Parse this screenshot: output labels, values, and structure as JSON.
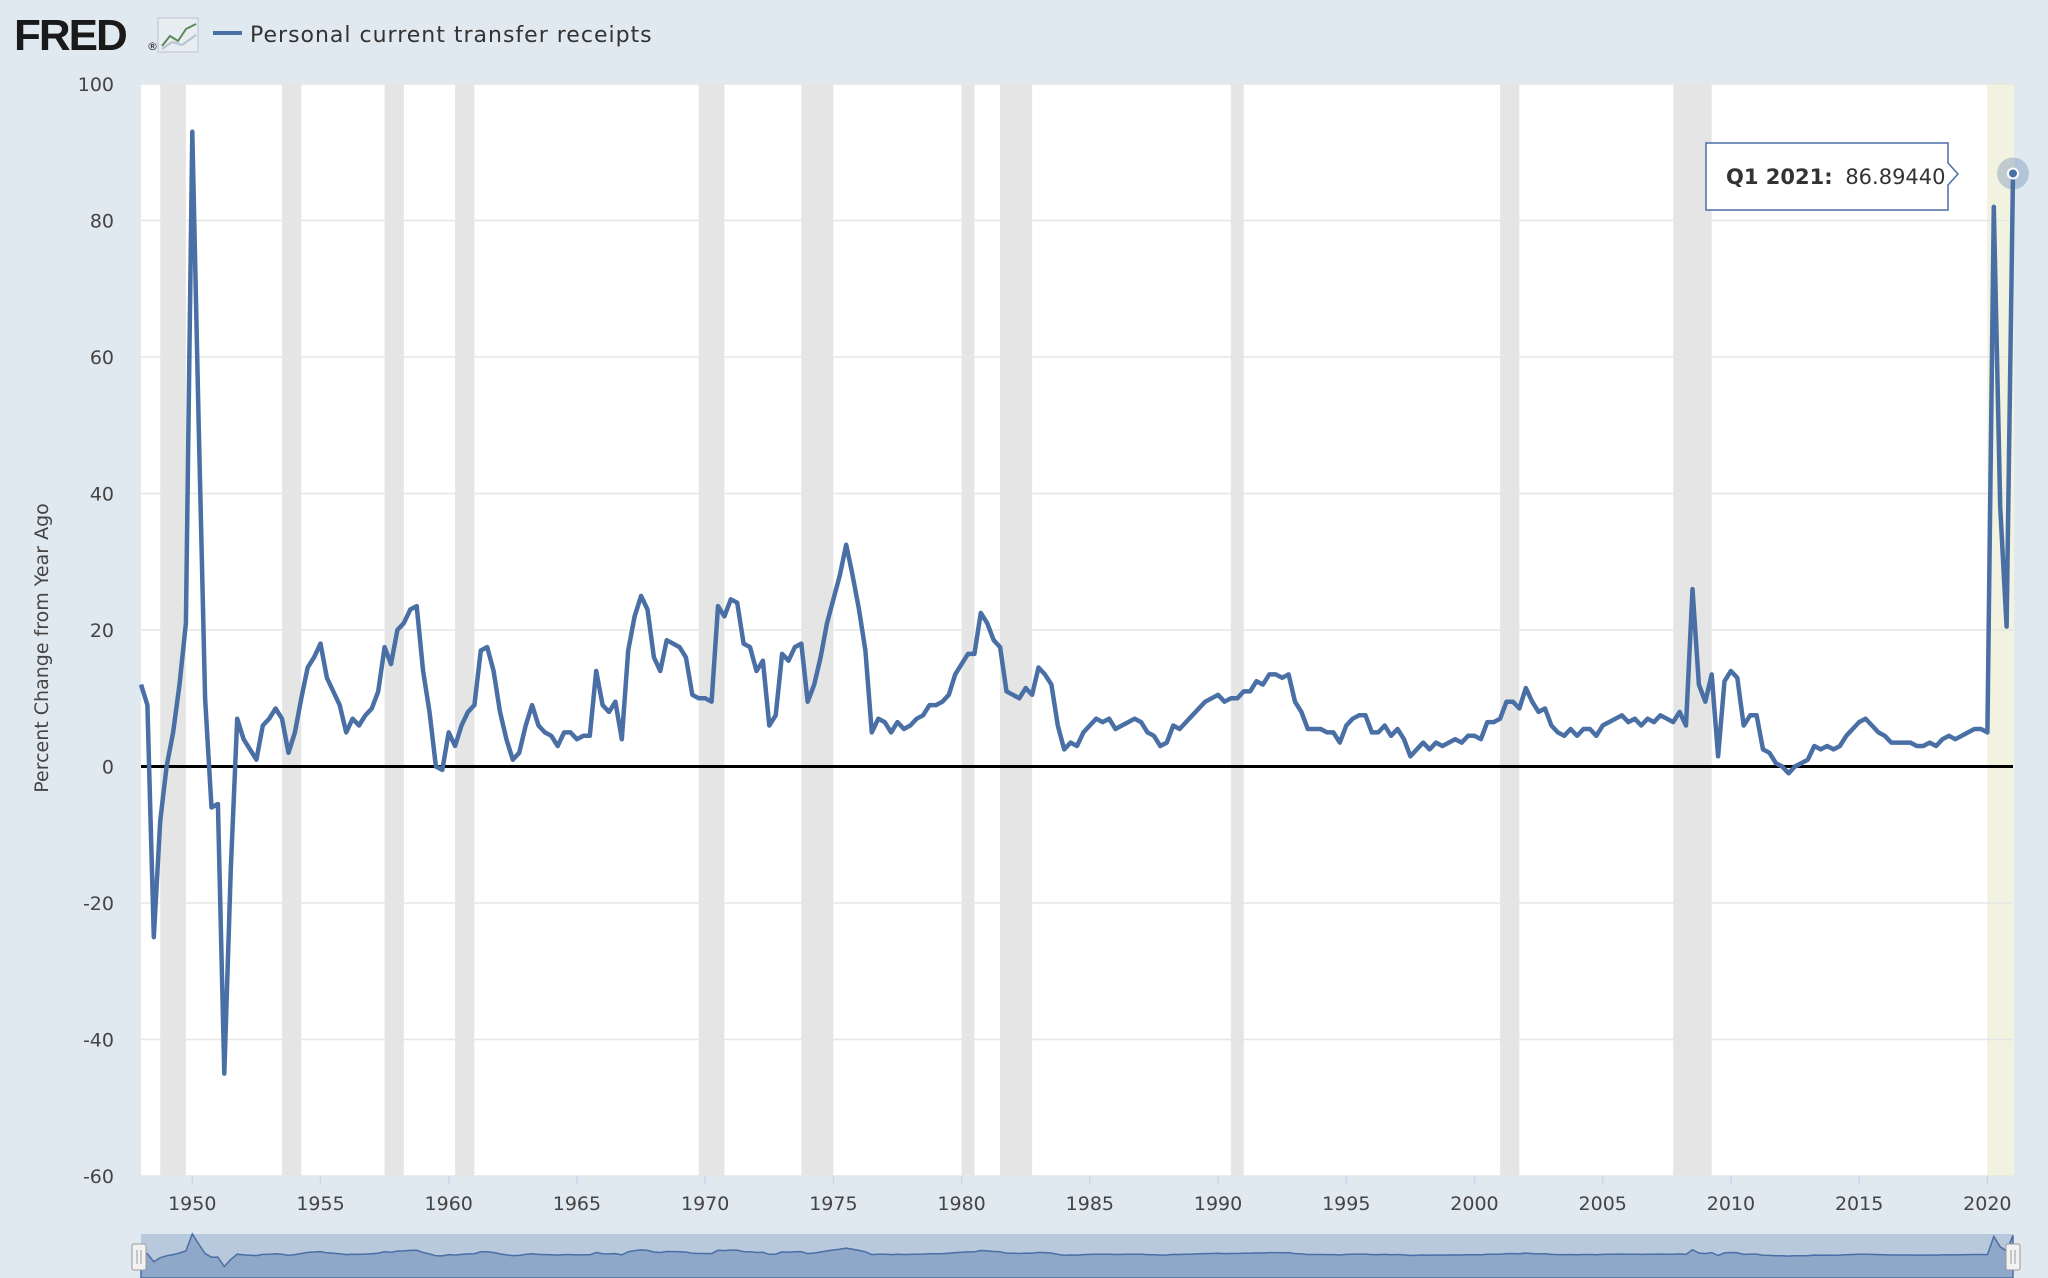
{
  "header": {
    "logo_text": "FRED",
    "logo_mark": "®",
    "logo_icon": "chart-line-icon",
    "series_name": "Personal current transfer receipts"
  },
  "colors": {
    "background": "#e1e9f0",
    "plot_background": "#ffffff",
    "series": "#4a6fa5",
    "recession": "#e5e5e5",
    "highlight": "#f2f2e0",
    "zero_line": "#000000",
    "navigator": "#b8c8dd"
  },
  "tooltip": {
    "label": "Q1 2021:",
    "value": "86.89440"
  },
  "chart_data": {
    "type": "line",
    "title": "",
    "xlabel": "",
    "ylabel": "Percent Change from Year Ago",
    "xlim": [
      1948.0,
      2021.0
    ],
    "ylim": [
      -60,
      100
    ],
    "x_ticks": [
      1950,
      1955,
      1960,
      1965,
      1970,
      1975,
      1980,
      1985,
      1990,
      1995,
      2000,
      2005,
      2010,
      2015,
      2020
    ],
    "y_ticks": [
      -60,
      -40,
      -20,
      0,
      20,
      40,
      60,
      80,
      100
    ],
    "grid": true,
    "legend": "top-left",
    "recessions": [
      [
        1948.75,
        1949.75
      ],
      [
        1953.5,
        1954.25
      ],
      [
        1957.5,
        1958.25
      ],
      [
        1960.25,
        1961.0
      ],
      [
        1969.75,
        1970.75
      ],
      [
        1973.75,
        1975.0
      ],
      [
        1980.0,
        1980.5
      ],
      [
        1981.5,
        1982.75
      ],
      [
        1990.5,
        1991.0
      ],
      [
        2001.0,
        2001.75
      ],
      [
        2007.75,
        2009.25
      ],
      [
        2020.0,
        2020.5
      ]
    ],
    "highlight_range": [
      2020.0,
      2021.0
    ],
    "series": [
      {
        "name": "Personal current transfer receipts",
        "points": [
          [
            1948.0,
            12
          ],
          [
            1948.25,
            9
          ],
          [
            1948.5,
            -25
          ],
          [
            1948.75,
            -8
          ],
          [
            1949.0,
            0
          ],
          [
            1949.25,
            5
          ],
          [
            1949.5,
            12
          ],
          [
            1949.75,
            21
          ],
          [
            1950.0,
            93
          ],
          [
            1950.25,
            50
          ],
          [
            1950.5,
            10
          ],
          [
            1950.75,
            -6
          ],
          [
            1951.0,
            -5.5
          ],
          [
            1951.25,
            -45
          ],
          [
            1951.5,
            -15
          ],
          [
            1951.75,
            7
          ],
          [
            1952.0,
            4
          ],
          [
            1952.25,
            2.5
          ],
          [
            1952.5,
            1
          ],
          [
            1952.75,
            6
          ],
          [
            1953.0,
            7
          ],
          [
            1953.25,
            8.5
          ],
          [
            1953.5,
            7
          ],
          [
            1953.75,
            2
          ],
          [
            1954.0,
            5
          ],
          [
            1954.25,
            10
          ],
          [
            1954.5,
            14.5
          ],
          [
            1954.75,
            16
          ],
          [
            1955.0,
            18
          ],
          [
            1955.25,
            13
          ],
          [
            1955.5,
            11
          ],
          [
            1955.75,
            9
          ],
          [
            1956.0,
            5
          ],
          [
            1956.25,
            7
          ],
          [
            1956.5,
            6
          ],
          [
            1956.75,
            7.5
          ],
          [
            1957.0,
            8.5
          ],
          [
            1957.25,
            11
          ],
          [
            1957.5,
            17.5
          ],
          [
            1957.75,
            15
          ],
          [
            1958.0,
            20
          ],
          [
            1958.25,
            21
          ],
          [
            1958.5,
            23
          ],
          [
            1958.75,
            23.5
          ],
          [
            1959.0,
            14
          ],
          [
            1959.25,
            8
          ],
          [
            1959.5,
            0
          ],
          [
            1959.75,
            -0.5
          ],
          [
            1960.0,
            5
          ],
          [
            1960.25,
            3
          ],
          [
            1960.5,
            6
          ],
          [
            1960.75,
            8
          ],
          [
            1961.0,
            9
          ],
          [
            1961.25,
            17
          ],
          [
            1961.5,
            17.5
          ],
          [
            1961.75,
            14
          ],
          [
            1962.0,
            8
          ],
          [
            1962.25,
            4
          ],
          [
            1962.5,
            1
          ],
          [
            1962.75,
            2
          ],
          [
            1963.0,
            6
          ],
          [
            1963.25,
            9
          ],
          [
            1963.5,
            6
          ],
          [
            1963.75,
            5
          ],
          [
            1964.0,
            4.5
          ],
          [
            1964.25,
            3
          ],
          [
            1964.5,
            5
          ],
          [
            1964.75,
            5
          ],
          [
            1965.0,
            4
          ],
          [
            1965.25,
            4.5
          ],
          [
            1965.5,
            4.5
          ],
          [
            1965.75,
            14
          ],
          [
            1966.0,
            9
          ],
          [
            1966.25,
            8
          ],
          [
            1966.5,
            9.5
          ],
          [
            1966.75,
            4
          ],
          [
            1967.0,
            17
          ],
          [
            1967.25,
            22
          ],
          [
            1967.5,
            25
          ],
          [
            1967.75,
            23
          ],
          [
            1968.0,
            16
          ],
          [
            1968.25,
            14
          ],
          [
            1968.5,
            18.5
          ],
          [
            1968.75,
            18
          ],
          [
            1969.0,
            17.5
          ],
          [
            1969.25,
            16
          ],
          [
            1969.5,
            10.5
          ],
          [
            1969.75,
            10
          ],
          [
            1970.0,
            10
          ],
          [
            1970.25,
            9.5
          ],
          [
            1970.5,
            23.5
          ],
          [
            1970.75,
            22
          ],
          [
            1971.0,
            24.5
          ],
          [
            1971.25,
            24
          ],
          [
            1971.5,
            18
          ],
          [
            1971.75,
            17.5
          ],
          [
            1972.0,
            14
          ],
          [
            1972.25,
            15.5
          ],
          [
            1972.5,
            6
          ],
          [
            1972.75,
            7.5
          ],
          [
            1973.0,
            16.5
          ],
          [
            1973.25,
            15.5
          ],
          [
            1973.5,
            17.5
          ],
          [
            1973.75,
            18
          ],
          [
            1974.0,
            9.5
          ],
          [
            1974.25,
            12
          ],
          [
            1974.5,
            16
          ],
          [
            1974.75,
            21
          ],
          [
            1975.0,
            24.5
          ],
          [
            1975.25,
            28
          ],
          [
            1975.5,
            32.5
          ],
          [
            1975.75,
            28
          ],
          [
            1976.0,
            23
          ],
          [
            1976.25,
            17
          ],
          [
            1976.5,
            5
          ],
          [
            1976.75,
            7
          ],
          [
            1977.0,
            6.5
          ],
          [
            1977.25,
            5
          ],
          [
            1977.5,
            6.5
          ],
          [
            1977.75,
            5.5
          ],
          [
            1978.0,
            6
          ],
          [
            1978.25,
            7
          ],
          [
            1978.5,
            7.5
          ],
          [
            1978.75,
            9
          ],
          [
            1979.0,
            9
          ],
          [
            1979.25,
            9.5
          ],
          [
            1979.5,
            10.5
          ],
          [
            1979.75,
            13.5
          ],
          [
            1980.0,
            15
          ],
          [
            1980.25,
            16.5
          ],
          [
            1980.5,
            16.5
          ],
          [
            1980.75,
            22.5
          ],
          [
            1981.0,
            21
          ],
          [
            1981.25,
            18.5
          ],
          [
            1981.5,
            17.5
          ],
          [
            1981.75,
            11
          ],
          [
            1982.0,
            10.5
          ],
          [
            1982.25,
            10
          ],
          [
            1982.5,
            11.5
          ],
          [
            1982.75,
            10.5
          ],
          [
            1983.0,
            14.5
          ],
          [
            1983.25,
            13.5
          ],
          [
            1983.5,
            12
          ],
          [
            1983.75,
            6
          ],
          [
            1984.0,
            2.5
          ],
          [
            1984.25,
            3.5
          ],
          [
            1984.5,
            3
          ],
          [
            1984.75,
            5
          ],
          [
            1985.0,
            6
          ],
          [
            1985.25,
            7
          ],
          [
            1985.5,
            6.5
          ],
          [
            1985.75,
            7
          ],
          [
            1986.0,
            5.5
          ],
          [
            1986.25,
            6
          ],
          [
            1986.5,
            6.5
          ],
          [
            1986.75,
            7
          ],
          [
            1987.0,
            6.5
          ],
          [
            1987.25,
            5
          ],
          [
            1987.5,
            4.5
          ],
          [
            1987.75,
            3
          ],
          [
            1988.0,
            3.5
          ],
          [
            1988.25,
            6
          ],
          [
            1988.5,
            5.5
          ],
          [
            1988.75,
            6.5
          ],
          [
            1989.0,
            7.5
          ],
          [
            1989.25,
            8.5
          ],
          [
            1989.5,
            9.5
          ],
          [
            1989.75,
            10
          ],
          [
            1990.0,
            10.5
          ],
          [
            1990.25,
            9.5
          ],
          [
            1990.5,
            10
          ],
          [
            1990.75,
            10
          ],
          [
            1991.0,
            11
          ],
          [
            1991.25,
            11
          ],
          [
            1991.5,
            12.5
          ],
          [
            1991.75,
            12
          ],
          [
            1992.0,
            13.5
          ],
          [
            1992.25,
            13.5
          ],
          [
            1992.5,
            13
          ],
          [
            1992.75,
            13.5
          ],
          [
            1993.0,
            9.5
          ],
          [
            1993.25,
            8
          ],
          [
            1993.5,
            5.5
          ],
          [
            1993.75,
            5.5
          ],
          [
            1994.0,
            5.5
          ],
          [
            1994.25,
            5
          ],
          [
            1994.5,
            5
          ],
          [
            1994.75,
            3.5
          ],
          [
            1995.0,
            6
          ],
          [
            1995.25,
            7
          ],
          [
            1995.5,
            7.5
          ],
          [
            1995.75,
            7.5
          ],
          [
            1996.0,
            5
          ],
          [
            1996.25,
            5
          ],
          [
            1996.5,
            6
          ],
          [
            1996.75,
            4.5
          ],
          [
            1997.0,
            5.5
          ],
          [
            1997.25,
            4
          ],
          [
            1997.5,
            1.5
          ],
          [
            1997.75,
            2.5
          ],
          [
            1998.0,
            3.5
          ],
          [
            1998.25,
            2.5
          ],
          [
            1998.5,
            3.5
          ],
          [
            1998.75,
            3
          ],
          [
            1999.0,
            3.5
          ],
          [
            1999.25,
            4
          ],
          [
            1999.5,
            3.5
          ],
          [
            1999.75,
            4.5
          ],
          [
            2000.0,
            4.5
          ],
          [
            2000.25,
            4
          ],
          [
            2000.5,
            6.5
          ],
          [
            2000.75,
            6.5
          ],
          [
            2001.0,
            7
          ],
          [
            2001.25,
            9.5
          ],
          [
            2001.5,
            9.5
          ],
          [
            2001.75,
            8.5
          ],
          [
            2002.0,
            11.5
          ],
          [
            2002.25,
            9.5
          ],
          [
            2002.5,
            8
          ],
          [
            2002.75,
            8.5
          ],
          [
            2003.0,
            6
          ],
          [
            2003.25,
            5
          ],
          [
            2003.5,
            4.5
          ],
          [
            2003.75,
            5.5
          ],
          [
            2004.0,
            4.5
          ],
          [
            2004.25,
            5.5
          ],
          [
            2004.5,
            5.5
          ],
          [
            2004.75,
            4.5
          ],
          [
            2005.0,
            6
          ],
          [
            2005.25,
            6.5
          ],
          [
            2005.5,
            7
          ],
          [
            2005.75,
            7.5
          ],
          [
            2006.0,
            6.5
          ],
          [
            2006.25,
            7
          ],
          [
            2006.5,
            6
          ],
          [
            2006.75,
            7
          ],
          [
            2007.0,
            6.5
          ],
          [
            2007.25,
            7.5
          ],
          [
            2007.5,
            7
          ],
          [
            2007.75,
            6.5
          ],
          [
            2008.0,
            8
          ],
          [
            2008.25,
            6
          ],
          [
            2008.5,
            26
          ],
          [
            2008.75,
            12
          ],
          [
            2009.0,
            9.5
          ],
          [
            2009.25,
            13.5
          ],
          [
            2009.5,
            1.5
          ],
          [
            2009.75,
            12.5
          ],
          [
            2010.0,
            14
          ],
          [
            2010.25,
            13
          ],
          [
            2010.5,
            6
          ],
          [
            2010.75,
            7.5
          ],
          [
            2011.0,
            7.5
          ],
          [
            2011.25,
            2.5
          ],
          [
            2011.5,
            2
          ],
          [
            2011.75,
            0.5
          ],
          [
            2012.0,
            0
          ],
          [
            2012.25,
            -1
          ],
          [
            2012.5,
            0
          ],
          [
            2012.75,
            0.5
          ],
          [
            2013.0,
            1
          ],
          [
            2013.25,
            3
          ],
          [
            2013.5,
            2.5
          ],
          [
            2013.75,
            3
          ],
          [
            2014.0,
            2.5
          ],
          [
            2014.25,
            3
          ],
          [
            2014.5,
            4.5
          ],
          [
            2014.75,
            5.5
          ],
          [
            2015.0,
            6.5
          ],
          [
            2015.25,
            7
          ],
          [
            2015.5,
            6
          ],
          [
            2015.75,
            5
          ],
          [
            2016.0,
            4.5
          ],
          [
            2016.25,
            3.5
          ],
          [
            2016.5,
            3.5
          ],
          [
            2016.75,
            3.5
          ],
          [
            2017.0,
            3.5
          ],
          [
            2017.25,
            3
          ],
          [
            2017.5,
            3
          ],
          [
            2017.75,
            3.5
          ],
          [
            2018.0,
            3
          ],
          [
            2018.25,
            4
          ],
          [
            2018.5,
            4.5
          ],
          [
            2018.75,
            4
          ],
          [
            2019.0,
            4.5
          ],
          [
            2019.25,
            5
          ],
          [
            2019.5,
            5.5
          ],
          [
            2019.75,
            5.5
          ],
          [
            2020.0,
            5
          ],
          [
            2020.25,
            82
          ],
          [
            2020.5,
            38
          ],
          [
            2020.75,
            20.5
          ],
          [
            2021.0,
            86.8944
          ]
        ]
      }
    ]
  }
}
